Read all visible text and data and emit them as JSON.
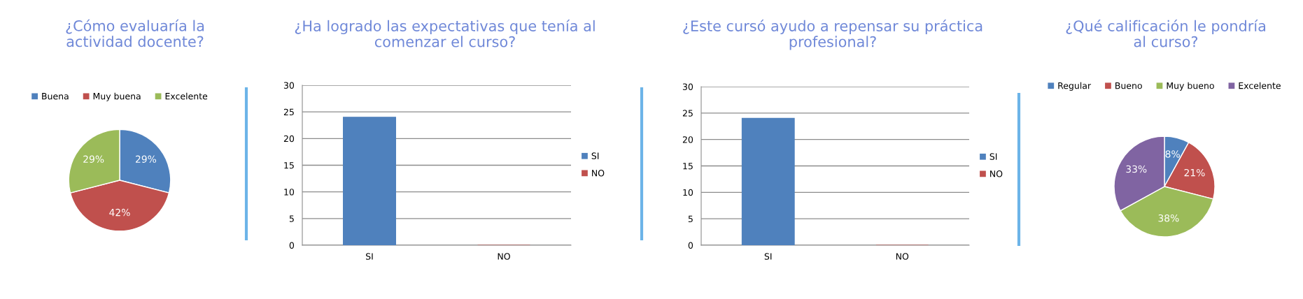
{
  "chart_data": [
    {
      "type": "pie",
      "title": "¿Cómo evaluaría la actividad docente?",
      "categories": [
        "Buena",
        "Muy buena",
        "Excelente"
      ],
      "values": [
        29,
        42,
        29
      ],
      "value_labels": [
        "29%",
        "42%",
        "29%"
      ],
      "colors": [
        "#4f81bd",
        "#c0504d",
        "#9bbb59"
      ],
      "legend": "top"
    },
    {
      "type": "bar",
      "title": "¿Ha logrado las expectativas que tenía al comenzar el curso?",
      "categories": [
        "SI",
        "NO"
      ],
      "ylim": [
        0,
        30
      ],
      "yticks": [
        0,
        5,
        10,
        15,
        20,
        25,
        30
      ],
      "grid": "y",
      "legend": "right",
      "series": [
        {
          "name": "SI",
          "color": "#4f81bd",
          "values": [
            24,
            null
          ]
        },
        {
          "name": "NO",
          "color": "#c0504d",
          "values": [
            null,
            0
          ]
        }
      ]
    },
    {
      "type": "bar",
      "title": "¿Este cursó ayudo a repensar su práctica profesional?",
      "categories": [
        "SI",
        "NO"
      ],
      "ylim": [
        0,
        30
      ],
      "yticks": [
        0,
        5,
        10,
        15,
        20,
        25,
        30
      ],
      "grid": "y",
      "legend": "right",
      "series": [
        {
          "name": "SI",
          "color": "#4f81bd",
          "values": [
            24,
            null
          ]
        },
        {
          "name": "NO",
          "color": "#c0504d",
          "values": [
            null,
            0
          ]
        }
      ]
    },
    {
      "type": "pie",
      "title": "¿Qué calificación le pondría al curso?",
      "categories": [
        "Regular",
        "Bueno",
        "Muy bueno",
        "Excelente"
      ],
      "values": [
        8,
        21,
        38,
        33
      ],
      "value_labels": [
        "8%",
        "21%",
        "38%",
        "33%"
      ],
      "colors": [
        "#4f81bd",
        "#c0504d",
        "#9bbb59",
        "#8064a2"
      ],
      "legend": "top"
    }
  ]
}
